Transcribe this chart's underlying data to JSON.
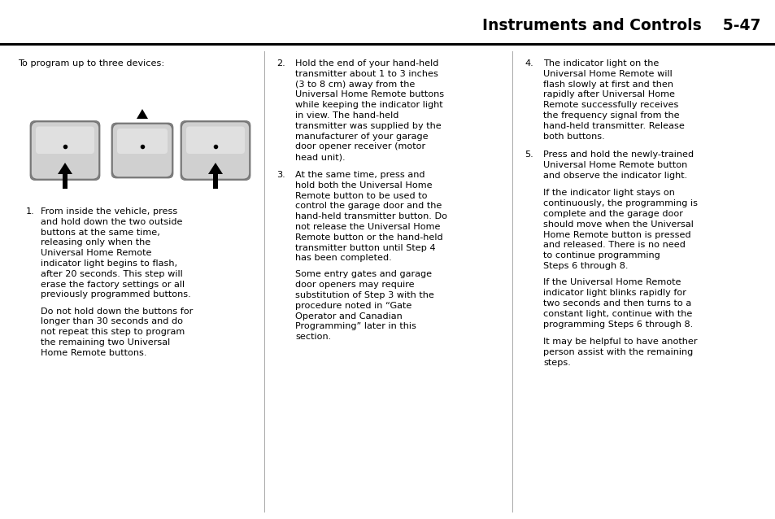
{
  "header_text": "Instruments and Controls",
  "page_number": "5-47",
  "bg_color": "#ffffff",
  "text_color": "#000000",
  "intro_text": "To program up to three devices:",
  "col1_text_1_num": "1.",
  "col1_text_1": "From inside the vehicle, press\nand hold down the two outside\nbuttons at the same time,\nreleasing only when the\nUniversal Home Remote\nindicator light begins to flash,\nafter 20 seconds. This step will\nerase the factory settings or all\npreviously programmed buttons.",
  "col1_text_2": "Do not hold down the buttons for\nlonger than 30 seconds and do\nnot repeat this step to program\nthe remaining two Universal\nHome Remote buttons.",
  "col2_text_2_num": "2.",
  "col2_text_2": "Hold the end of your hand-held\ntransmitter about 1 to 3 inches\n(3 to 8 cm) away from the\nUniversal Home Remote buttons\nwhile keeping the indicator light\nin view. The hand-held\ntransmitter was supplied by the\nmanufacturer of your garage\ndoor opener receiver (motor\nhead unit).",
  "col2_text_3_num": "3.",
  "col2_text_3": "At the same time, press and\nhold both the Universal Home\nRemote button to be used to\ncontrol the garage door and the\nhand-held transmitter button. Do\nnot release the Universal Home\nRemote button or the hand-held\ntransmitter button until Step 4\nhas been completed.",
  "col2_text_3b": "Some entry gates and garage\ndoor openers may require\nsubstitution of Step 3 with the\nprocedure noted in “Gate\nOperator and Canadian\nProgramming” later in this\nsection.",
  "col3_text_4_num": "4.",
  "col3_text_4": "The indicator light on the\nUniversal Home Remote will\nflash slowly at first and then\nrapidly after Universal Home\nRemote successfully receives\nthe frequency signal from the\nhand-held transmitter. Release\nboth buttons.",
  "col3_text_5_num": "5.",
  "col3_text_5": "Press and hold the newly-trained\nUniversal Home Remote button\nand observe the indicator light.",
  "col3_text_5b": "If the indicator light stays on\ncontinuously, the programming is\ncomplete and the garage door\nshould move when the Universal\nHome Remote button is pressed\nand released. There is no need\nto continue programming\nSteps 6 through 8.",
  "col3_text_5c": "If the Universal Home Remote\nindicator light blinks rapidly for\ntwo seconds and then turns to a\nconstant light, continue with the\nprogramming Steps 6 through 8.",
  "col3_text_5d": "It may be helpful to have another\nperson assist with the remaining\nsteps."
}
